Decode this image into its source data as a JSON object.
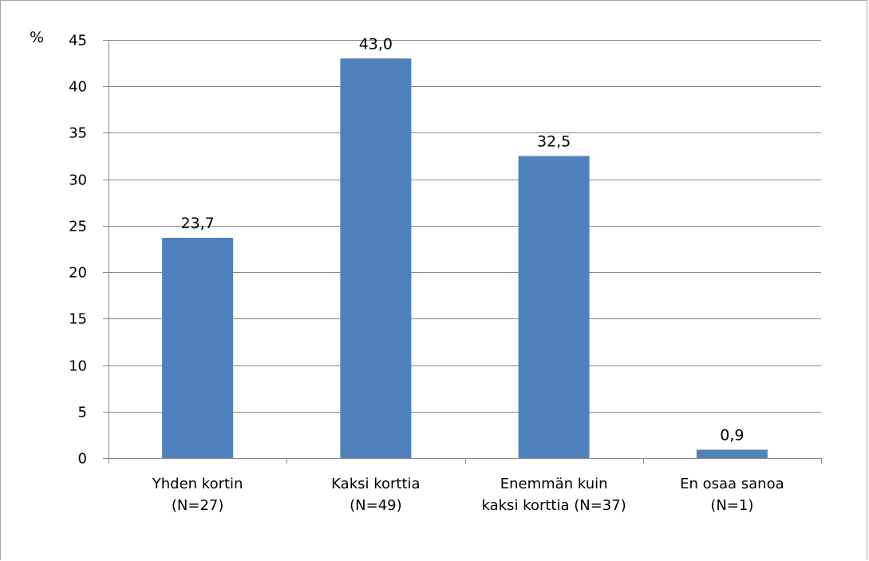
{
  "chart_data": {
    "type": "bar",
    "title": "",
    "xlabel": "",
    "ylabel": "%",
    "categories": [
      [
        "Yhden kortin",
        "(N=27)"
      ],
      [
        "Kaksi korttia",
        "(N=49)"
      ],
      [
        "Enemmän kuin",
        "kaksi korttia (N=37)"
      ],
      [
        "En osaa sanoa",
        "(N=1)"
      ]
    ],
    "values": [
      23.7,
      43.0,
      32.5,
      0.9
    ],
    "data_labels": [
      "23,7",
      "43,0",
      "32,5",
      "0,9"
    ],
    "ylim": [
      0,
      45
    ],
    "yticks": [
      0,
      5,
      10,
      15,
      20,
      25,
      30,
      35,
      40,
      45
    ],
    "grid": true,
    "legend": "none",
    "colors": {
      "bar": "#4f81bd",
      "grid": "#868686",
      "axis": "#868686",
      "frame": "#a6a6a6"
    }
  }
}
